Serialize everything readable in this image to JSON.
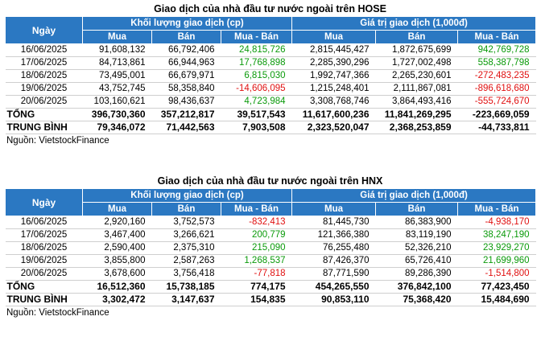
{
  "hose": {
    "title": "Giao dịch của nhà đầu tư nước ngoài trên HOSE",
    "header": {
      "date": "Ngày",
      "volume_group": "Khối lượng giao dịch (cp)",
      "value_group": "Giá trị giao dịch (1,000đ)",
      "buy": "Mua",
      "sell": "Bán",
      "net": "Mua - Bán"
    },
    "rows": [
      {
        "date": "16/06/2025",
        "vol_buy": "91,608,132",
        "vol_sell": "66,792,406",
        "vol_net": "24,815,726",
        "val_buy": "2,815,445,427",
        "val_sell": "1,872,675,699",
        "val_net": "942,769,728"
      },
      {
        "date": "17/06/2025",
        "vol_buy": "84,713,861",
        "vol_sell": "66,944,963",
        "vol_net": "17,768,898",
        "val_buy": "2,285,390,296",
        "val_sell": "1,727,002,498",
        "val_net": "558,387,798"
      },
      {
        "date": "18/06/2025",
        "vol_buy": "73,495,001",
        "vol_sell": "66,679,971",
        "vol_net": "6,815,030",
        "val_buy": "1,992,747,366",
        "val_sell": "2,265,230,601",
        "val_net": "-272,483,235"
      },
      {
        "date": "19/06/2025",
        "vol_buy": "43,752,745",
        "vol_sell": "58,358,840",
        "vol_net": "-14,606,095",
        "val_buy": "1,215,248,401",
        "val_sell": "2,111,867,081",
        "val_net": "-896,618,680"
      },
      {
        "date": "20/06/2025",
        "vol_buy": "103,160,621",
        "vol_sell": "98,436,637",
        "vol_net": "4,723,984",
        "val_buy": "3,308,768,746",
        "val_sell": "3,864,493,416",
        "val_net": "-555,724,670"
      }
    ],
    "total": {
      "label": "TỔNG",
      "vol_buy": "396,730,360",
      "vol_sell": "357,212,817",
      "vol_net": "39,517,543",
      "val_buy": "11,617,600,236",
      "val_sell": "11,841,269,295",
      "val_net": "-223,669,059"
    },
    "average": {
      "label": "TRUNG BÌNH",
      "vol_buy": "79,346,072",
      "vol_sell": "71,442,563",
      "vol_net": "7,903,508",
      "val_buy": "2,323,520,047",
      "val_sell": "2,368,253,859",
      "val_net": "-44,733,811"
    },
    "source": "Nguồn: VietstockFinance"
  },
  "hnx": {
    "title": "Giao dịch của nhà đầu tư nước ngoài trên HNX",
    "header": {
      "date": "Ngày",
      "volume_group": "Khối lượng giao dịch (cp)",
      "value_group": "Giá trị giao dịch (1,000đ)",
      "buy": "Mua",
      "sell": "Bán",
      "net": "Mua - Bán"
    },
    "rows": [
      {
        "date": "16/06/2025",
        "vol_buy": "2,920,160",
        "vol_sell": "3,752,573",
        "vol_net": "-832,413",
        "val_buy": "81,445,730",
        "val_sell": "86,383,900",
        "val_net": "-4,938,170"
      },
      {
        "date": "17/06/2025",
        "vol_buy": "3,467,400",
        "vol_sell": "3,266,621",
        "vol_net": "200,779",
        "val_buy": "121,366,380",
        "val_sell": "83,119,190",
        "val_net": "38,247,190"
      },
      {
        "date": "18/06/2025",
        "vol_buy": "2,590,400",
        "vol_sell": "2,375,310",
        "vol_net": "215,090",
        "val_buy": "76,255,480",
        "val_sell": "52,326,210",
        "val_net": "23,929,270"
      },
      {
        "date": "19/06/2025",
        "vol_buy": "3,855,800",
        "vol_sell": "2,587,263",
        "vol_net": "1,268,537",
        "val_buy": "87,426,370",
        "val_sell": "65,726,410",
        "val_net": "21,699,960"
      },
      {
        "date": "20/06/2025",
        "vol_buy": "3,678,600",
        "vol_sell": "3,756,418",
        "vol_net": "-77,818",
        "val_buy": "87,771,590",
        "val_sell": "89,286,390",
        "val_net": "-1,514,800"
      }
    ],
    "total": {
      "label": "TỔNG",
      "vol_buy": "16,512,360",
      "vol_sell": "15,738,185",
      "vol_net": "774,175",
      "val_buy": "454,265,550",
      "val_sell": "376,842,100",
      "val_net": "77,423,450"
    },
    "average": {
      "label": "TRUNG BÌNH",
      "vol_buy": "3,302,472",
      "vol_sell": "3,147,637",
      "vol_net": "154,835",
      "val_buy": "90,853,110",
      "val_sell": "75,368,420",
      "val_net": "15,484,690"
    },
    "source": "Nguồn: VietstockFinance"
  },
  "colors": {
    "header_bg": "#2b78c2",
    "positive": "#0a9a0a",
    "negative": "#e01010"
  }
}
